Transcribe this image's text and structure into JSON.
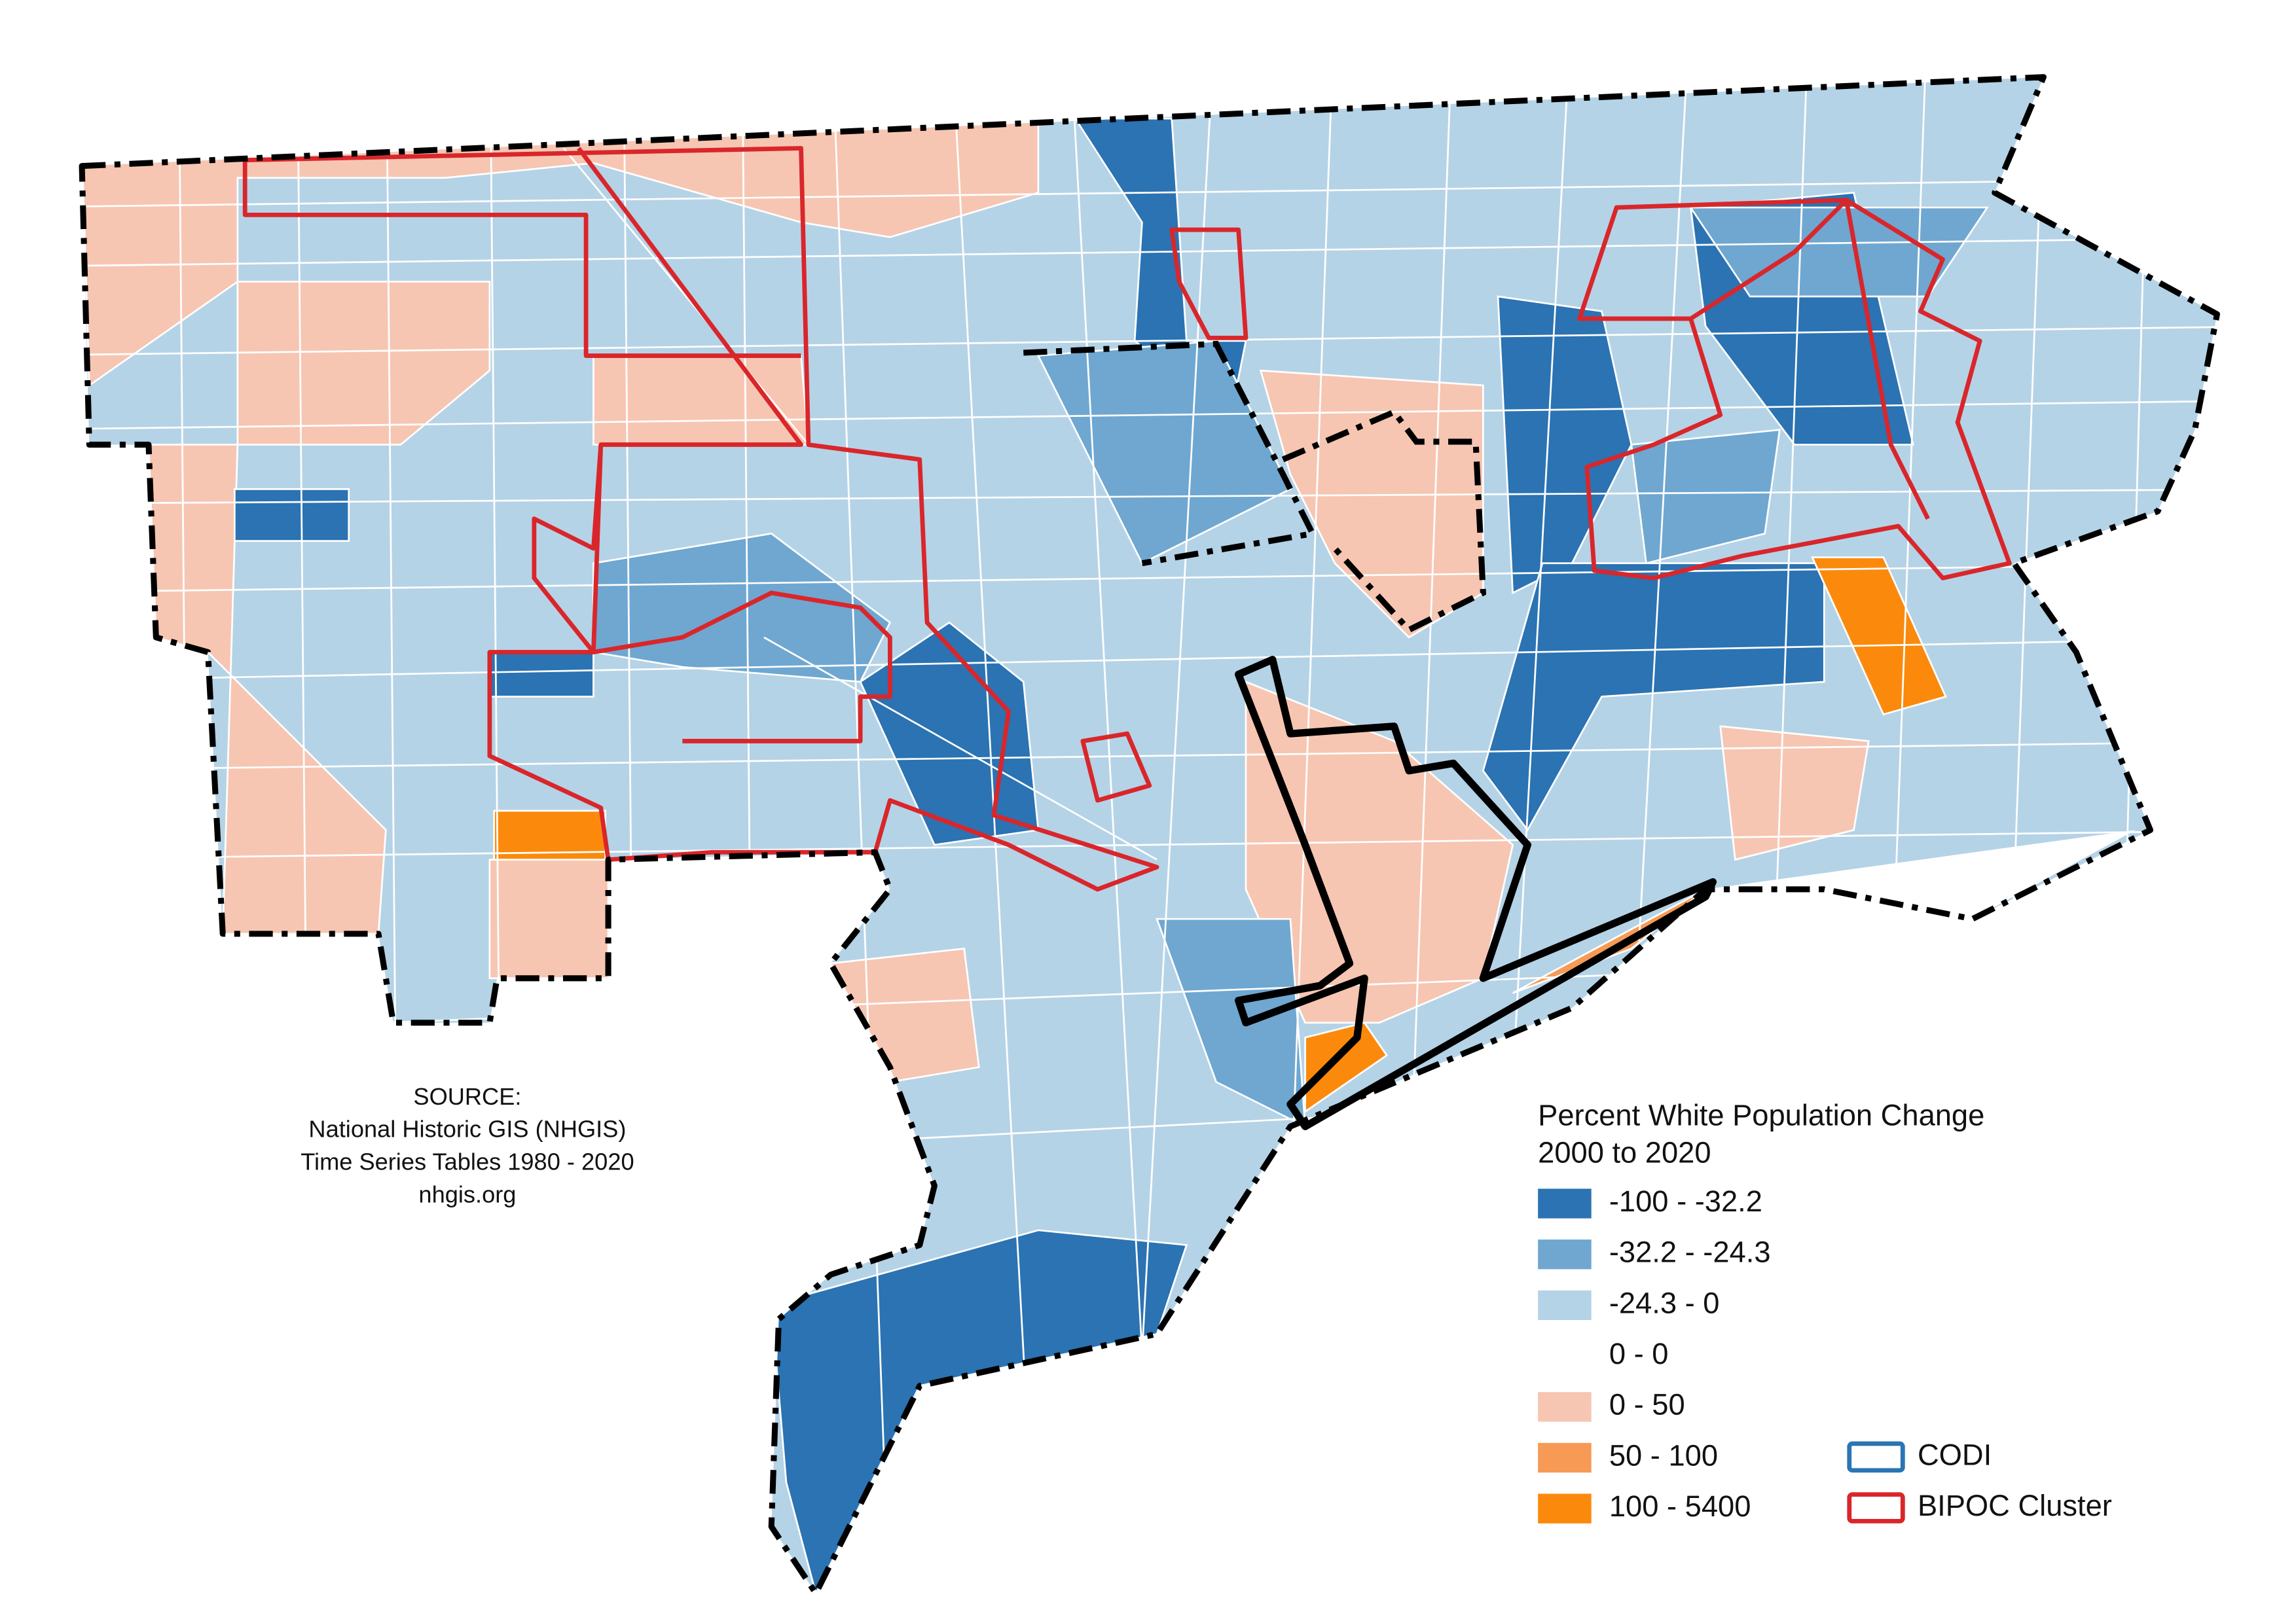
{
  "legend": {
    "title": "Percent White Population Change",
    "subtitle": "2000 to 2020",
    "items": [
      {
        "label": "-100 - -32.2",
        "color": "#2b73b2"
      },
      {
        "label": "-32.2 - -24.3",
        "color": "#6fa7d0"
      },
      {
        "label": "-24.3 - 0",
        "color": "#b5d3e6"
      },
      {
        "label": "0 - 0",
        "color": "#ffffff"
      },
      {
        "label": "0 - 50",
        "color": "#f6c6b2"
      },
      {
        "label": "50 - 100",
        "color": "#f69a55"
      },
      {
        "label": "100 - 5400",
        "color": "#fb8a0c"
      }
    ],
    "outlines": [
      {
        "label": "CODI",
        "color": "#2a75b4"
      },
      {
        "label": "BIPOC Cluster",
        "color": "#d9262b"
      }
    ]
  },
  "source": {
    "lines": [
      "SOURCE:",
      "National Historic GIS (NHGIS)",
      "Time Series Tables 1980 - 2020",
      "nhgis.org"
    ]
  }
}
